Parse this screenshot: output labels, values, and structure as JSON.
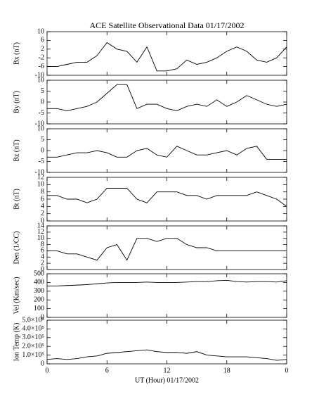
{
  "chart_data": [
    {
      "type": "line",
      "title": "ACE Satellite Observational Data  01/17/2002",
      "ylabel": "Bx (nT)",
      "color": "#000000",
      "x": [
        0,
        1,
        2,
        3,
        4,
        5,
        6,
        7,
        8,
        9,
        10,
        11,
        12,
        13,
        14,
        15,
        16,
        17,
        18,
        19,
        20,
        21,
        22,
        23,
        24
      ],
      "values": [
        -6,
        -6,
        -5,
        -4,
        -4,
        -1,
        5,
        2,
        1,
        -4,
        3,
        -8,
        -8,
        -7,
        -3,
        -5,
        -4,
        -2,
        1,
        3,
        1,
        -3,
        -4,
        -2,
        3
      ],
      "xlim": [
        0,
        24
      ],
      "xticks": [
        0,
        6,
        12,
        18,
        24
      ],
      "ylim": [
        -10,
        10
      ],
      "yticks": [
        -10,
        -6,
        -2,
        2,
        6,
        10
      ]
    },
    {
      "type": "line",
      "ylabel": "By (nT)",
      "color": "#000000",
      "x": [
        0,
        1,
        2,
        3,
        4,
        5,
        6,
        7,
        8,
        9,
        10,
        11,
        12,
        13,
        14,
        15,
        16,
        17,
        18,
        19,
        20,
        21,
        22,
        23,
        24
      ],
      "values": [
        -3,
        -3,
        -4,
        -3,
        -2,
        0,
        4,
        8,
        8,
        -3,
        -1,
        -1,
        -3,
        -4,
        -2,
        -1,
        -2,
        1,
        -2,
        0,
        3,
        1,
        -1,
        -2,
        -1
      ],
      "xlim": [
        0,
        24
      ],
      "xticks": [
        0,
        6,
        12,
        18,
        24
      ],
      "ylim": [
        -10,
        10
      ],
      "yticks": [
        -10,
        -5,
        0,
        5,
        10
      ]
    },
    {
      "type": "line",
      "ylabel": "Bz (nT)",
      "color": "#000000",
      "x": [
        0,
        1,
        2,
        3,
        4,
        5,
        6,
        7,
        8,
        9,
        10,
        11,
        12,
        13,
        14,
        15,
        16,
        17,
        18,
        19,
        20,
        21,
        22,
        23,
        24
      ],
      "values": [
        -3,
        -3,
        -2,
        -1,
        -1,
        0,
        -1,
        -3,
        -3,
        0,
        1,
        -2,
        -3,
        2,
        0,
        -2,
        -2,
        -1,
        0,
        -2,
        1,
        2,
        -4,
        -4,
        -4
      ],
      "xlim": [
        0,
        24
      ],
      "xticks": [
        0,
        6,
        12,
        18,
        24
      ],
      "ylim": [
        -10,
        10
      ],
      "yticks": [
        -10,
        -5,
        0,
        5,
        10
      ]
    },
    {
      "type": "line",
      "ylabel": "Bt (nT)",
      "color": "#000000",
      "x": [
        0,
        1,
        2,
        3,
        4,
        5,
        6,
        7,
        8,
        9,
        10,
        11,
        12,
        13,
        14,
        15,
        16,
        17,
        18,
        19,
        20,
        21,
        22,
        23,
        24
      ],
      "values": [
        7,
        7,
        6,
        6,
        5,
        6,
        9,
        9,
        9,
        6,
        5,
        8,
        8,
        8,
        7,
        7,
        6,
        7,
        7,
        7,
        7,
        8,
        7,
        6,
        4
      ],
      "xlim": [
        0,
        24
      ],
      "xticks": [
        0,
        6,
        12,
        18,
        24
      ],
      "ylim": [
        0,
        12
      ],
      "yticks": [
        0,
        2,
        4,
        6,
        8,
        10,
        12
      ]
    },
    {
      "type": "line",
      "ylabel": "Den (1/CC)",
      "color": "#000000",
      "x": [
        0,
        1,
        2,
        3,
        4,
        5,
        6,
        7,
        8,
        9,
        10,
        11,
        12,
        13,
        14,
        15,
        16,
        17,
        18,
        19,
        20,
        21,
        22,
        23,
        24
      ],
      "values": [
        6,
        6,
        5,
        5,
        4,
        3,
        7,
        8,
        3,
        10,
        10,
        9,
        10,
        10,
        8,
        7,
        7,
        6,
        6,
        6,
        6,
        6,
        6,
        6,
        6
      ],
      "xlim": [
        0,
        24
      ],
      "xticks": [
        0,
        6,
        12,
        18,
        24
      ],
      "ylim": [
        0,
        14
      ],
      "yticks": [
        0,
        2,
        4,
        6,
        8,
        10,
        12,
        14
      ]
    },
    {
      "type": "line",
      "ylabel": "Vel (Km/sec)",
      "color": "#000000",
      "x": [
        0,
        1,
        2,
        3,
        4,
        5,
        6,
        7,
        8,
        9,
        10,
        11,
        12,
        13,
        14,
        15,
        16,
        17,
        18,
        19,
        20,
        21,
        22,
        23,
        24
      ],
      "values": [
        360,
        360,
        365,
        370,
        375,
        385,
        395,
        400,
        400,
        400,
        405,
        400,
        400,
        400,
        405,
        410,
        410,
        420,
        425,
        410,
        405,
        410,
        410,
        405,
        420
      ],
      "xlim": [
        0,
        24
      ],
      "xticks": [
        0,
        6,
        12,
        18,
        24
      ],
      "ylim": [
        0,
        500
      ],
      "yticks": [
        0,
        100,
        200,
        300,
        400,
        500
      ]
    },
    {
      "type": "line",
      "ylabel": "Ion Temp (K)",
      "xlabel": "UT (Hour)  01/17/2002",
      "color": "#000000",
      "x": [
        0,
        1,
        2,
        3,
        4,
        5,
        6,
        7,
        8,
        9,
        10,
        11,
        12,
        13,
        14,
        15,
        16,
        17,
        18,
        19,
        20,
        21,
        22,
        23,
        24
      ],
      "values": [
        50000,
        60000,
        50000,
        60000,
        80000,
        90000,
        120000,
        130000,
        140000,
        150000,
        160000,
        140000,
        130000,
        130000,
        120000,
        140000,
        100000,
        90000,
        80000,
        80000,
        80000,
        70000,
        60000,
        40000,
        50000
      ],
      "xlim": [
        0,
        24
      ],
      "xticks": [
        0,
        6,
        12,
        18,
        {
          "value": 24,
          "label": "0"
        }
      ],
      "ylim": [
        0,
        500000
      ],
      "yticks": [
        0,
        {
          "value": 100000,
          "label": "1.0×10⁵"
        },
        {
          "value": 200000,
          "label": "2.0×10⁵"
        },
        {
          "value": 300000,
          "label": "3.0×10⁵"
        },
        {
          "value": 400000,
          "label": "4.0×10⁵"
        },
        {
          "value": 500000,
          "label": "5.0×10⁵"
        }
      ]
    }
  ]
}
